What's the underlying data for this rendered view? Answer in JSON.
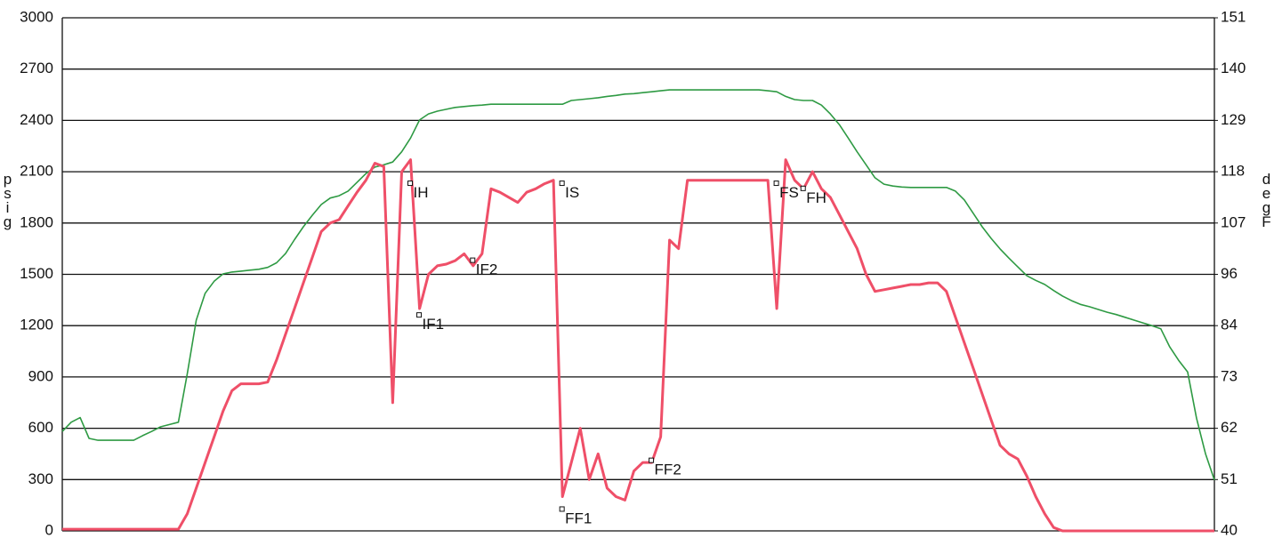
{
  "chart_data": {
    "type": "line",
    "y_label": "psig",
    "y2_label": "degF",
    "categories": [
      null,
      null,
      null,
      null,
      null,
      null,
      null,
      null,
      null,
      null,
      null,
      null,
      null,
      null,
      null,
      null,
      null,
      null,
      null,
      null,
      null,
      null,
      null,
      null,
      null,
      null,
      null,
      null,
      null,
      null,
      null,
      null,
      null,
      null,
      null,
      null,
      null,
      null,
      null,
      null,
      null,
      null,
      null,
      null,
      null,
      null,
      null,
      null,
      null,
      null,
      null,
      null,
      null,
      null,
      null,
      null,
      null,
      null,
      null,
      null,
      null,
      null,
      null,
      null,
      null,
      null,
      null,
      null,
      null,
      null,
      null,
      null,
      null,
      null,
      null,
      null,
      null,
      null,
      null,
      null,
      null,
      null,
      null,
      null,
      null,
      null,
      null,
      null,
      null,
      null,
      null,
      null,
      null,
      null,
      null,
      null,
      null,
      null,
      null,
      null,
      null,
      null,
      null,
      null,
      null,
      null,
      null,
      null,
      null,
      null,
      null,
      null,
      null,
      null,
      null,
      null,
      null,
      null,
      null,
      null,
      null,
      null,
      null,
      null,
      null,
      null,
      null,
      null,
      null,
      null
    ],
    "series": [
      {
        "name": "psig",
        "color": "#ef4f68",
        "values": [
          10,
          10,
          10,
          10,
          10,
          10,
          10,
          10,
          10,
          10,
          10,
          10,
          10,
          10,
          100,
          250,
          400,
          550,
          700,
          820,
          860,
          860,
          860,
          870,
          1000,
          1150,
          1300,
          1450,
          1600,
          1750,
          1800,
          1820,
          1900,
          1980,
          2050,
          2150,
          2130,
          750,
          2100,
          2170,
          1300,
          1500,
          1550,
          1560,
          1580,
          1620,
          1550,
          1620,
          2000,
          1980,
          1950,
          1920,
          1980,
          2000,
          2030,
          2050,
          200,
          400,
          600,
          300,
          450,
          250,
          200,
          180,
          350,
          400,
          400,
          550,
          1700,
          1650,
          2050,
          2050,
          2050,
          2050,
          2050,
          2050,
          2050,
          2050,
          2050,
          2050,
          1300,
          2170,
          2050,
          2000,
          2100,
          2000,
          1950,
          1850,
          1750,
          1650,
          1500,
          1400,
          1410,
          1420,
          1430,
          1440,
          1440,
          1450,
          1450,
          1400,
          1250,
          1100,
          950,
          800,
          650,
          500,
          450,
          420,
          320,
          200,
          100,
          20,
          0,
          0,
          0,
          0,
          0,
          0,
          0,
          0,
          0,
          0,
          0,
          0,
          0,
          0,
          0,
          0,
          0,
          0
        ]
      },
      {
        "name": "degF",
        "color": "#2e9a43",
        "axis": "y2",
        "values": [
          61.5,
          63.5,
          64.5,
          60,
          59.6,
          59.6,
          59.6,
          59.6,
          59.6,
          60.6,
          61.5,
          62.5,
          63,
          63.5,
          74,
          85.6,
          91.4,
          94,
          95.6,
          96,
          96.2,
          96.4,
          96.6,
          97,
          98,
          100,
          103,
          105.8,
          108.3,
          110.6,
          112,
          112.5,
          113.5,
          115.4,
          117.3,
          118.7,
          119.2,
          119.8,
          122,
          125,
          128.9,
          130.2,
          130.8,
          131.2,
          131.6,
          131.8,
          132,
          132.1,
          132.3,
          132.3,
          132.3,
          132.3,
          132.3,
          132.3,
          132.3,
          132.3,
          132.3,
          133.1,
          133.3,
          133.5,
          133.7,
          134,
          134.2,
          134.5,
          134.6,
          134.8,
          135,
          135.2,
          135.4,
          135.4,
          135.4,
          135.4,
          135.4,
          135.4,
          135.4,
          135.4,
          135.4,
          135.4,
          135.4,
          135.2,
          135,
          134,
          133.3,
          133.1,
          133.1,
          132.1,
          130.2,
          127.9,
          125,
          122,
          119.2,
          116.4,
          115,
          114.6,
          114.4,
          114.3,
          114.3,
          114.3,
          114.3,
          114.3,
          113.5,
          111.6,
          108.7,
          105.8,
          103.3,
          101,
          99,
          97.1,
          95.2,
          94.2,
          93.3,
          92,
          90.8,
          89.8,
          89,
          88.5,
          87.9,
          87.3,
          86.8,
          86.2,
          85.6,
          85,
          84.4,
          83.7,
          79.8,
          76.9,
          74.4,
          64.4,
          56.7,
          51
        ]
      }
    ],
    "annotations": [
      {
        "text": "IH",
        "x": 39,
        "y": 2030
      },
      {
        "text": "IF1",
        "x": 40,
        "y": 1260
      },
      {
        "text": "IF2",
        "x": 46,
        "y": 1580
      },
      {
        "text": "IS",
        "x": 56,
        "y": 2030
      },
      {
        "text": "FF1",
        "x": 56,
        "y": 125
      },
      {
        "text": "FF2",
        "x": 66,
        "y": 410
      },
      {
        "text": "FS",
        "x": 80,
        "y": 2030
      },
      {
        "text": "FH",
        "x": 83,
        "y": 2000
      }
    ],
    "ylim": [
      0,
      3000
    ],
    "yticks": [
      0,
      300,
      600,
      900,
      1200,
      1500,
      1800,
      2100,
      2400,
      2700,
      3000
    ],
    "y2lim": [
      40,
      151
    ],
    "y2ticks": [
      40,
      {
        "value": 51.1,
        "label": "51"
      },
      {
        "value": 62.2,
        "label": "62"
      },
      {
        "value": 73.3,
        "label": "73"
      },
      {
        "value": 84.4,
        "label": "84"
      },
      {
        "value": 95.5,
        "label": "96"
      },
      {
        "value": 106.6,
        "label": "107"
      },
      {
        "value": 117.7,
        "label": "118"
      },
      {
        "value": 128.8,
        "label": "129"
      },
      {
        "value": 139.9,
        "label": "140"
      },
      151
    ],
    "grid": true
  }
}
